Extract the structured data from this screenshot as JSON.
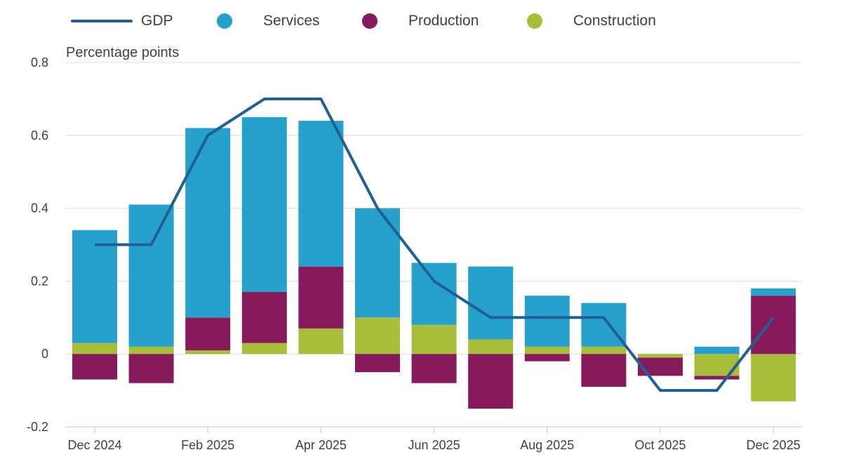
{
  "chart_data": {
    "type": "bar",
    "stacked": true,
    "ylabel": "Percentage points",
    "ylim": [
      -0.2,
      0.8
    ],
    "yticks": [
      {
        "value": 0.8,
        "label": "0.8"
      },
      {
        "value": 0.6,
        "label": "0.6"
      },
      {
        "value": 0.4,
        "label": "0.4"
      },
      {
        "value": 0.2,
        "label": "0.2"
      },
      {
        "value": 0,
        "label": "0"
      },
      {
        "value": -0.2,
        "label": "-0.2"
      }
    ],
    "categories": [
      "Dec 2024",
      "Jan 2025",
      "Feb 2025",
      "Mar 2025",
      "Apr 2025",
      "May 2025",
      "Jun 2025",
      "Jul 2025",
      "Aug 2025",
      "Sep 2025",
      "Oct 2025",
      "Nov 2025",
      "Dec 2025"
    ],
    "xtick_labels": [
      "Dec 2024",
      "",
      "Feb 2025",
      "",
      "Apr 2025",
      "",
      "Jun 2025",
      "",
      "Aug 2025",
      "",
      "Oct 2025",
      "",
      "Dec 2025"
    ],
    "legend": [
      {
        "name": "GDP",
        "kind": "line",
        "color": "#206095"
      },
      {
        "name": "Services",
        "kind": "dot",
        "color": "#27a0cc"
      },
      {
        "name": "Production",
        "kind": "dot",
        "color": "#871a5b"
      },
      {
        "name": "Construction",
        "kind": "dot",
        "color": "#a8bd3a"
      }
    ],
    "series": [
      {
        "name": "Construction",
        "color": "#a8bd3a",
        "values": [
          0.03,
          0.02,
          0.01,
          0.03,
          0.07,
          0.1,
          0.08,
          0.04,
          0.02,
          0.02,
          -0.01,
          -0.06,
          -0.13
        ]
      },
      {
        "name": "Production",
        "color": "#871a5b",
        "values": [
          -0.07,
          -0.08,
          0.09,
          0.14,
          0.17,
          -0.05,
          -0.08,
          -0.15,
          -0.02,
          -0.09,
          -0.05,
          -0.01,
          0.16
        ]
      },
      {
        "name": "Services",
        "color": "#27a0cc",
        "values": [
          0.31,
          0.39,
          0.52,
          0.48,
          0.4,
          0.3,
          0.17,
          0.2,
          0.14,
          0.12,
          0.0,
          0.02,
          0.02
        ]
      }
    ],
    "line": {
      "name": "GDP",
      "color": "#206095",
      "values": [
        0.3,
        0.3,
        0.6,
        0.7,
        0.7,
        0.4,
        0.2,
        0.1,
        0.1,
        0.1,
        -0.1,
        -0.1,
        0.1
      ]
    }
  }
}
